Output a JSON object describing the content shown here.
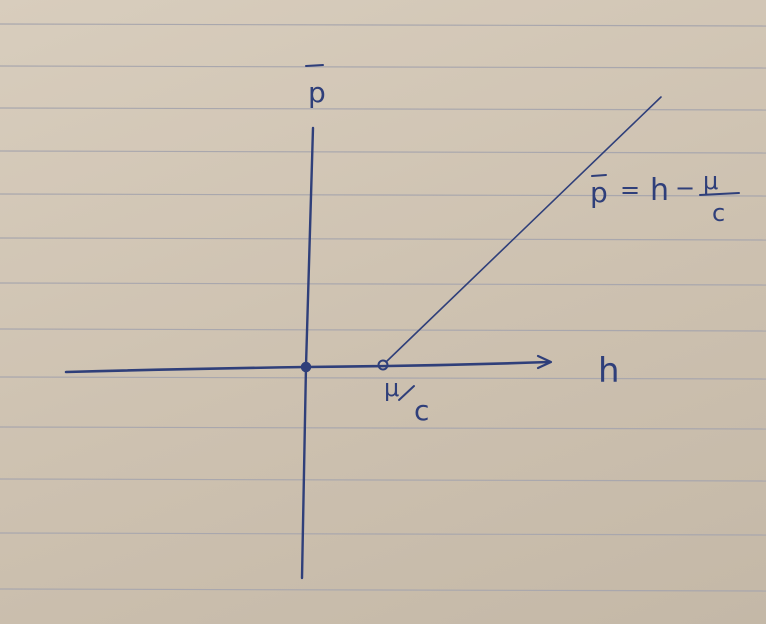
{
  "diagram": {
    "vertical_axis_label": "p",
    "horizontal_axis_label": "h",
    "threshold_marker": {
      "numerator": "μ",
      "denominator": "c"
    },
    "line_equation": {
      "lhs": "p",
      "equals": "=",
      "h_term": "h",
      "minus": "−",
      "fraction_numerator": "μ",
      "fraction_denominator": "c"
    }
  },
  "colors": {
    "ink": "#2f3f7a",
    "paper": "#d3c8b8",
    "rules": "#a9a7ad"
  }
}
